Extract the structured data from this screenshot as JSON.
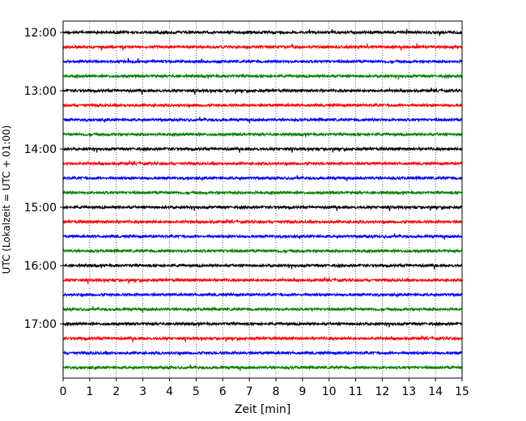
{
  "chart_data": {
    "type": "line",
    "title": "",
    "xlabel": "Zeit  [min]",
    "ylabel": "UTC (Lokalzeit = UTC + 01:00)",
    "xlim": [
      0,
      15
    ],
    "x_ticks": [
      "0",
      "1",
      "2",
      "3",
      "4",
      "5",
      "6",
      "7",
      "8",
      "9",
      "10",
      "11",
      "12",
      "13",
      "14",
      "15"
    ],
    "y_ticks": [
      "12:00",
      "13:00",
      "14:00",
      "15:00",
      "16:00",
      "17:00"
    ],
    "grid": "vertical dotted lines at each minute",
    "trace_colors": [
      "#000000",
      "#ff0000",
      "#0000ff",
      "#008000"
    ],
    "traces": [
      {
        "start_utc": "12:00"
      },
      {
        "start_utc": "12:15"
      },
      {
        "start_utc": "12:30"
      },
      {
        "start_utc": "12:45"
      },
      {
        "start_utc": "13:00"
      },
      {
        "start_utc": "13:15"
      },
      {
        "start_utc": "13:30"
      },
      {
        "start_utc": "13:45"
      },
      {
        "start_utc": "14:00"
      },
      {
        "start_utc": "14:15"
      },
      {
        "start_utc": "14:30"
      },
      {
        "start_utc": "14:45"
      },
      {
        "start_utc": "15:00"
      },
      {
        "start_utc": "15:15"
      },
      {
        "start_utc": "15:30"
      },
      {
        "start_utc": "15:45"
      },
      {
        "start_utc": "16:00"
      },
      {
        "start_utc": "16:15"
      },
      {
        "start_utc": "16:30"
      },
      {
        "start_utc": "16:45"
      },
      {
        "start_utc": "17:00"
      },
      {
        "start_utc": "17:15"
      },
      {
        "start_utc": "17:30"
      },
      {
        "start_utc": "17:45"
      }
    ]
  }
}
